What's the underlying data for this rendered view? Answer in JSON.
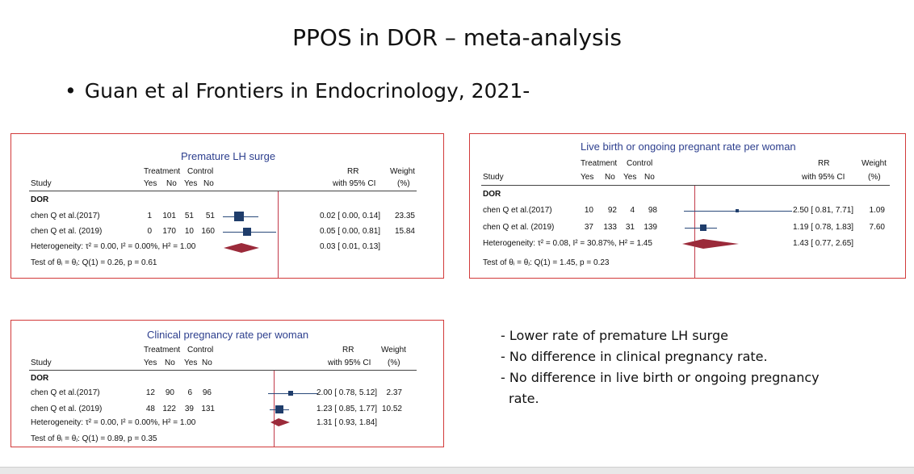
{
  "slide": {
    "title": "PPOS in DOR – meta-analysis",
    "bullet": "Guan et al Frontiers in Endocrinology, 2021-"
  },
  "notes": {
    "line1": "- Lower rate of premature LH surge",
    "line2": "- No difference in clinical pregnancy rate.",
    "line3a": "- No difference in live birth or ongoing pregnancy",
    "line3b": "rate."
  },
  "colors": {
    "panel_border": "#d23a3a",
    "title_blue": "#2d3f8e",
    "marker": "#1f3d6b",
    "diamond": "#9b2a3a"
  },
  "panel_lh": {
    "title": "Premature LH surge",
    "col_study": "Study",
    "col_treatment": "Treatment",
    "col_control": "Control",
    "col_yes1": "Yes",
    "col_no1": "No",
    "col_yes2": "Yes",
    "col_no2": "No",
    "col_rr": "RR",
    "col_ci": "with 95% CI",
    "col_weight": "Weight",
    "col_pct": "(%)",
    "group": "DOR",
    "rows": [
      {
        "study": "chen Q et al.(2017)",
        "ty": "1",
        "tn": "101",
        "cy": "51",
        "cn": "51",
        "rr": "0.02 [ 0.00,   0.14]",
        "weight": "23.35"
      },
      {
        "study": "chen Q et al. (2019)",
        "ty": "0",
        "tn": "170",
        "cy": "10",
        "cn": "160",
        "rr": "0.05 [ 0.00,   0.81]",
        "weight": "15.84"
      }
    ],
    "het": "Heterogeneity: τ² = 0.00, I² = 0.00%, H² = 1.00",
    "het_rr": "0.03 [ 0.01,   0.13]",
    "test": "Test of θᵢ = θⱼ: Q(1) = 0.26, p = 0.61"
  },
  "panel_lb": {
    "title": "Live birth or ongoing pregnant rate per woman",
    "col_study": "Study",
    "col_treatment": "Treatment",
    "col_control": "Control",
    "col_yes1": "Yes",
    "col_no1": "No",
    "col_yes2": "Yes",
    "col_no2": "No",
    "col_rr": "RR",
    "col_ci": "with 95% CI",
    "col_weight": "Weight",
    "col_pct": "(%)",
    "group": "DOR",
    "rows": [
      {
        "study": "chen Q et al.(2017)",
        "ty": "10",
        "tn": "92",
        "cy": "4",
        "cn": "98",
        "rr": "2.50 [ 0.81,  7.71]",
        "weight": "1.09"
      },
      {
        "study": "chen Q et al. (2019)",
        "ty": "37",
        "tn": "133",
        "cy": "31",
        "cn": "139",
        "rr": "1.19 [ 0.78,  1.83]",
        "weight": "7.60"
      }
    ],
    "het": "Heterogeneity: τ² = 0.08, I² = 30.87%, H² = 1.45",
    "het_rr": "1.43 [ 0.77,  2.65]",
    "test": "Test of θᵢ = θⱼ: Q(1) = 1.45, p = 0.23"
  },
  "panel_cp": {
    "title": "Clinical pregnancy rate per woman",
    "col_study": "Study",
    "col_treatment": "Treatment",
    "col_control": "Control",
    "col_yes1": "Yes",
    "col_no1": "No",
    "col_yes2": "Yes",
    "col_no2": "No",
    "col_rr": "RR",
    "col_ci": "with 95% CI",
    "col_weight": "Weight",
    "col_pct": "(%)",
    "group": "DOR",
    "rows": [
      {
        "study": "chen Q et al.(2017)",
        "ty": "12",
        "tn": "90",
        "cy": "6",
        "cn": "96",
        "rr": "2.00 [ 0.78,  5.12]",
        "weight": "2.37"
      },
      {
        "study": "chen Q et al. (2019)",
        "ty": "48",
        "tn": "122",
        "cy": "39",
        "cn": "131",
        "rr": "1.23 [ 0.85,  1.77]",
        "weight": "10.52"
      }
    ],
    "het": "Heterogeneity: τ² = 0.00, I² = 0.00%, H² = 1.00",
    "het_rr": "1.31 [ 0.93,  1.84]",
    "test": "Test of θᵢ = θⱼ: Q(1) = 0.89, p = 0.35"
  }
}
